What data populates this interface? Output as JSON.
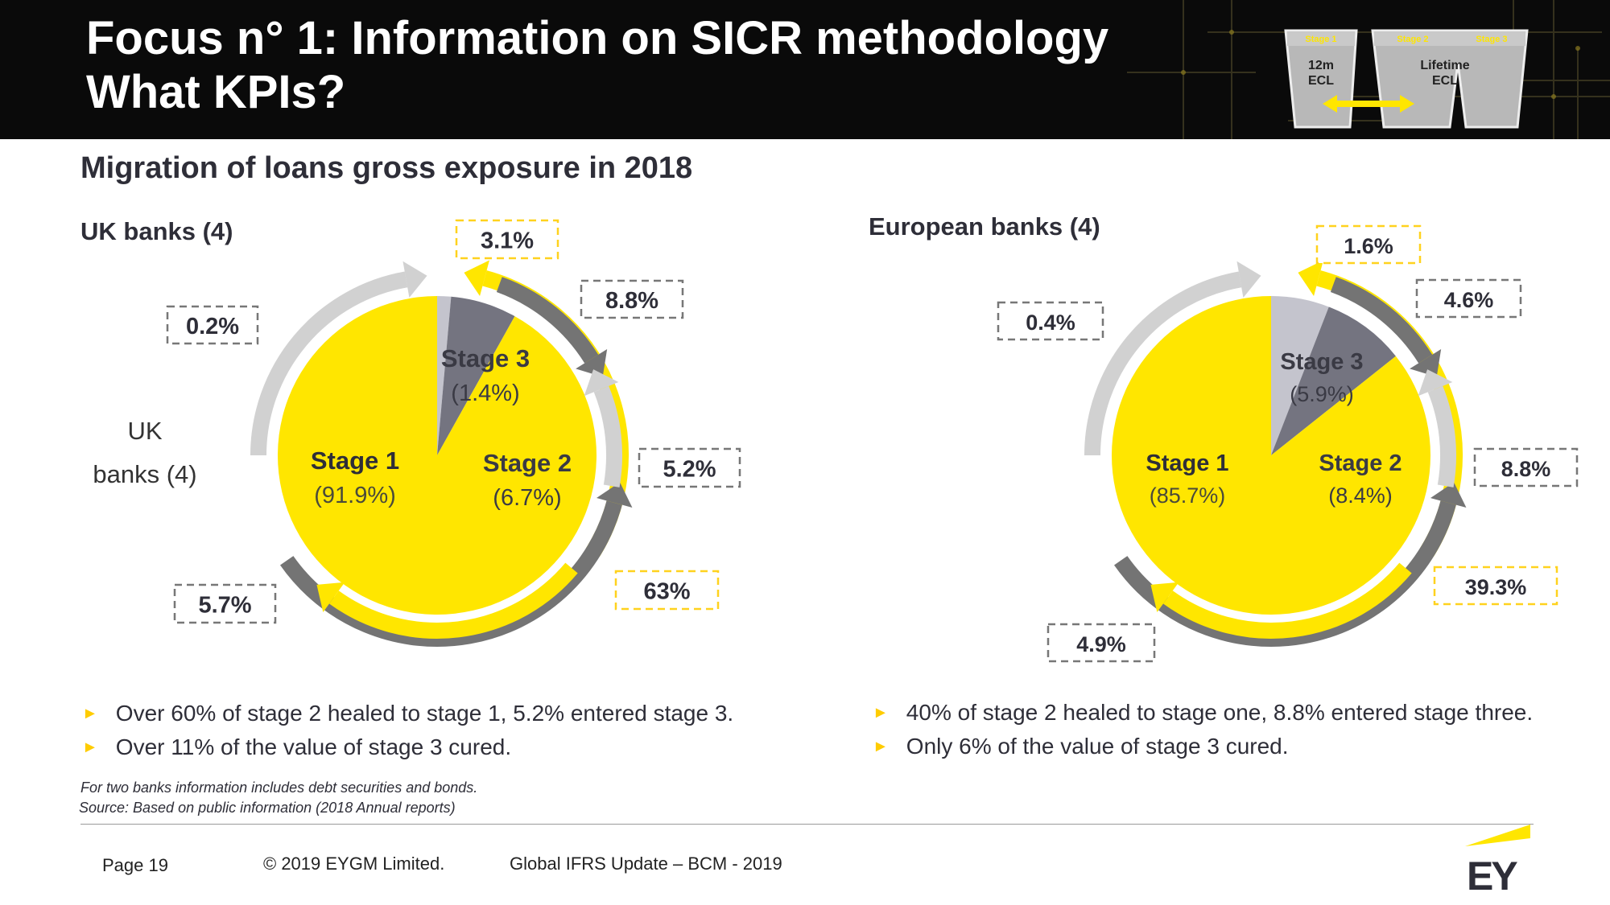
{
  "header": {
    "title_line1": "Focus n° 1: Information on SICR methodology",
    "title_line2": "What KPIs?",
    "graphic": {
      "bucket_left_label_line1": "12m",
      "bucket_left_label_line2": "ECL",
      "bucket_right_label_line1": "Lifetime",
      "bucket_right_label_line2": "ECL",
      "stage_tabs": [
        "Stage 1",
        "Stage 2",
        "Stage 3"
      ]
    }
  },
  "subtitle": "Migration of loans gross exposure in 2018",
  "chart_data": [
    {
      "type": "pie",
      "title": "UK banks (4)",
      "categories": [
        "Stage 1",
        "Stage 2",
        "Stage 3"
      ],
      "values": [
        91.9,
        6.7,
        1.4
      ],
      "value_labels": [
        "(91.9%)",
        "(6.7%)",
        "(1.4%)"
      ],
      "colors": [
        "#ffe600",
        "#747480",
        "#c4c4cd"
      ],
      "side_label": "UK banks (4)",
      "migrations": [
        {
          "from": "Stage 1",
          "to": "Stage 2",
          "value": "5.7%"
        },
        {
          "from": "Stage 1",
          "to": "Stage 3",
          "value": "0.2%"
        },
        {
          "from": "Stage 2",
          "to": "Stage 1",
          "value": "63%"
        },
        {
          "from": "Stage 2",
          "to": "Stage 3",
          "value": "5.2%"
        },
        {
          "from": "Stage 3",
          "to": "Stage 1",
          "value": "3.1%"
        },
        {
          "from": "Stage 3",
          "to": "Stage 2",
          "value": "8.8%"
        }
      ]
    },
    {
      "type": "pie",
      "title": "European  banks (4)",
      "categories": [
        "Stage 1",
        "Stage 2",
        "Stage 3"
      ],
      "values": [
        85.7,
        8.4,
        5.9
      ],
      "value_labels": [
        "(85.7%)",
        "(8.4%)",
        "(5.9%)"
      ],
      "colors": [
        "#ffe600",
        "#747480",
        "#c4c4cd"
      ],
      "migrations": [
        {
          "from": "Stage 1",
          "to": "Stage 2",
          "value": "4.9%"
        },
        {
          "from": "Stage 1",
          "to": "Stage 3",
          "value": "0.4%"
        },
        {
          "from": "Stage 2",
          "to": "Stage 1",
          "value": "39.3%"
        },
        {
          "from": "Stage 2",
          "to": "Stage 3",
          "value": "8.8%"
        },
        {
          "from": "Stage 3",
          "to": "Stage 1",
          "value": "1.6%"
        },
        {
          "from": "Stage 3",
          "to": "Stage 2",
          "value": "4.6%"
        }
      ]
    }
  ],
  "bullets": {
    "uk": [
      "Over 60% of stage 2 healed to stage 1, 5.2% entered stage 3.",
      "Over 11% of the value of stage 3 cured."
    ],
    "eu": [
      "40% of stage 2 healed to stage one, 8.8% entered stage three.",
      "Only 6% of the value of stage 3 cured."
    ]
  },
  "bullet_marker": "►",
  "notes": {
    "note1": "For two banks information includes debt securities and bonds.",
    "note2": "Source: Based on public information (2018 Annual reports)"
  },
  "footer": {
    "page": "Page 19",
    "copyright": "© 2019 EYGM Limited.",
    "deck": "Global IFRS Update – BCM - 2019"
  },
  "logo": {
    "text": "EY"
  },
  "colors": {
    "ey_yellow": "#ffe600",
    "stage2_gray": "#747480",
    "stage3_gray": "#c4c4cd",
    "arrow_light": "#cfcfcf",
    "arrow_dark": "#747474",
    "box_yellow_border": "#ffd21e",
    "box_gray_border": "#777777"
  }
}
